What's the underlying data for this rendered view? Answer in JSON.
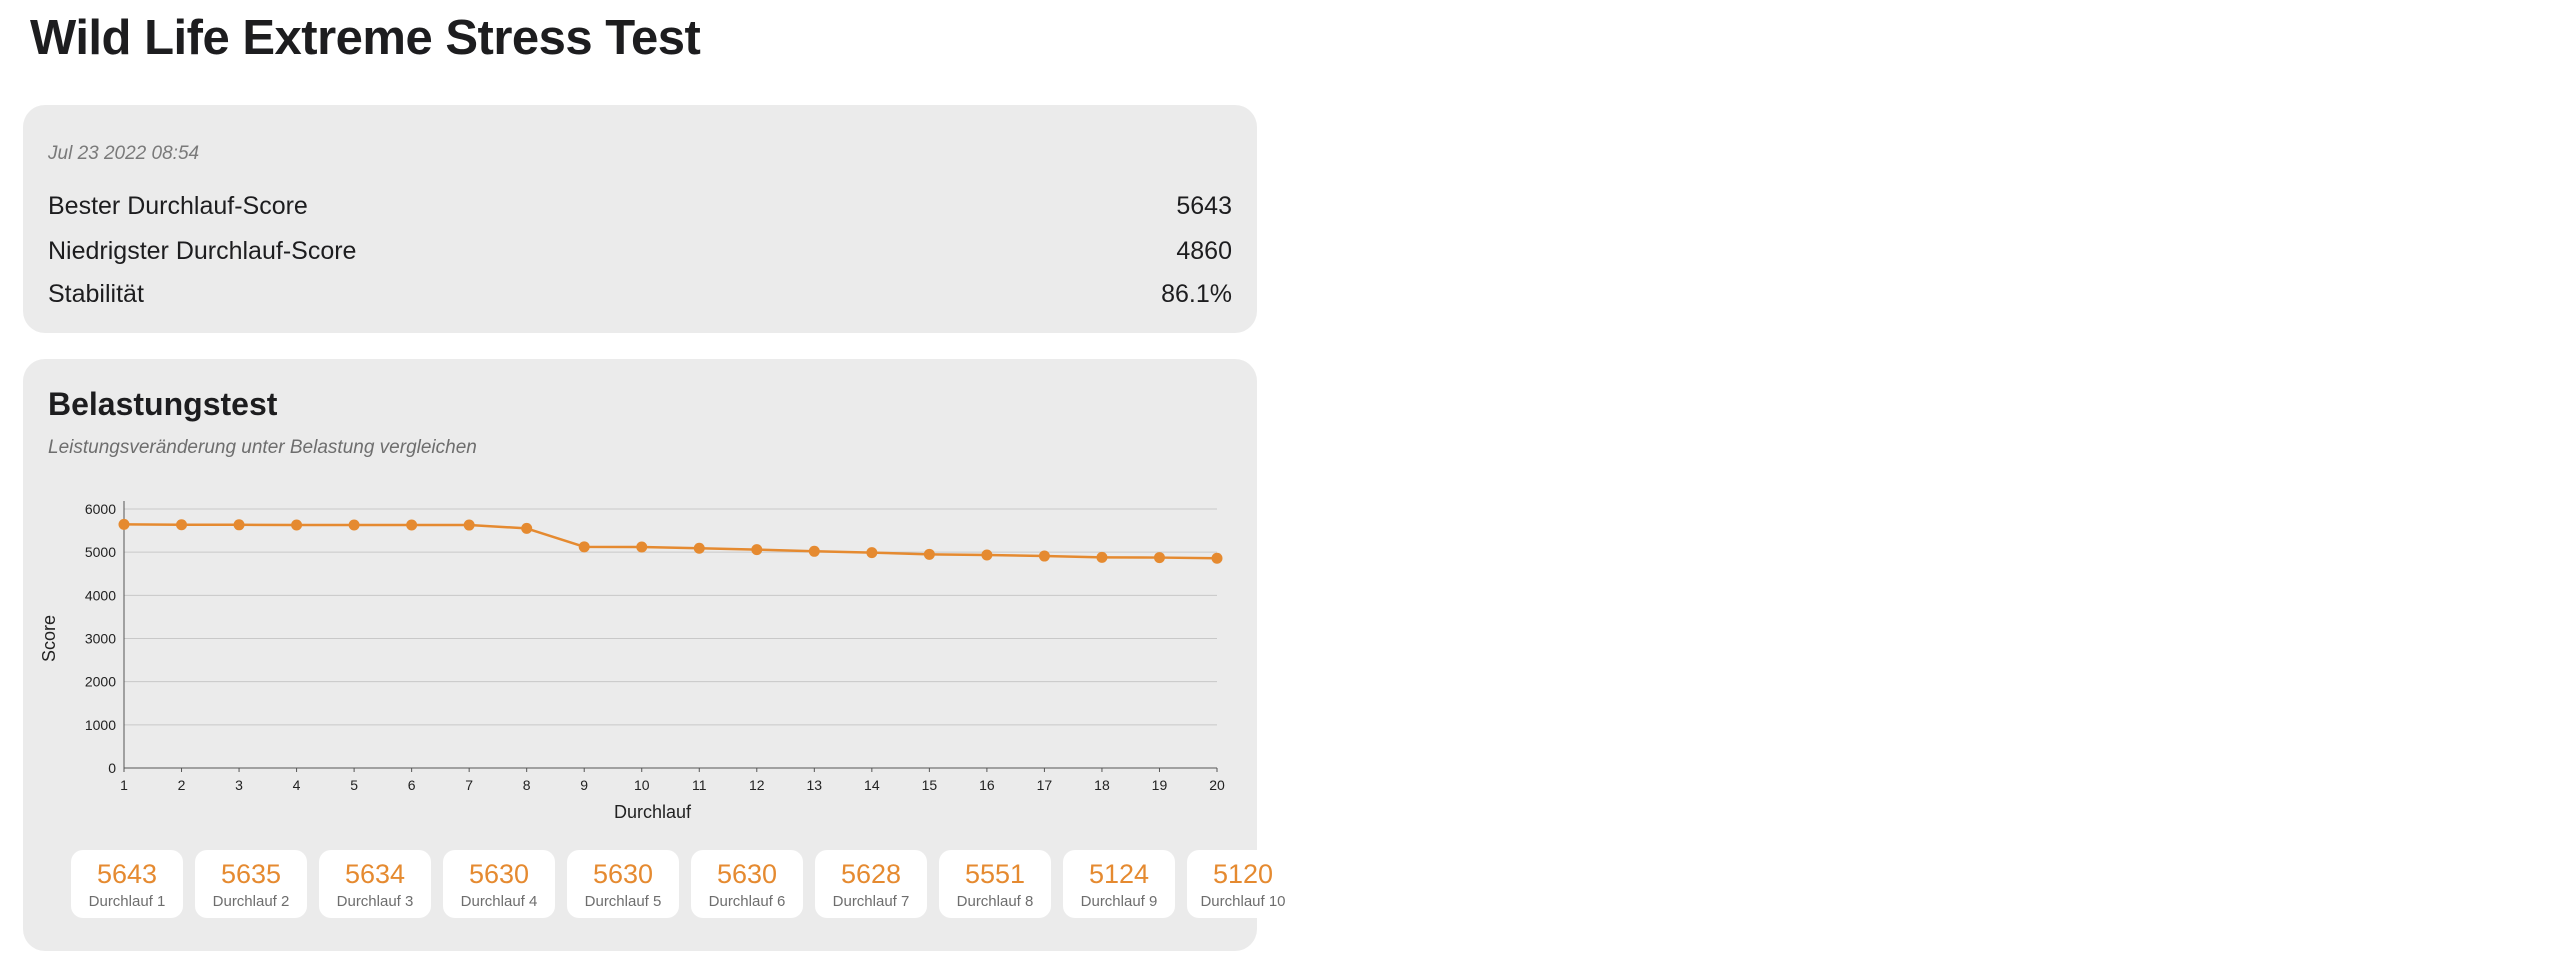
{
  "page": {
    "title": "Wild Life Extreme Stress Test"
  },
  "summary": {
    "date": "Jul 23 2022 08:54",
    "rows": [
      {
        "label": "Bester Durchlauf-Score",
        "value": "5643"
      },
      {
        "label": "Niedrigster Durchlauf-Score",
        "value": "4860"
      },
      {
        "label": "Stabilität",
        "value": "86.1%"
      }
    ]
  },
  "stress_test": {
    "title": "Belastungstest",
    "subtitle": "Leistungsveränderung unter Belastung vergleichen",
    "runs": [
      {
        "score": "5643",
        "label": "Durchlauf 1"
      },
      {
        "score": "5635",
        "label": "Durchlauf 2"
      },
      {
        "score": "5634",
        "label": "Durchlauf 3"
      },
      {
        "score": "5630",
        "label": "Durchlauf 4"
      },
      {
        "score": "5630",
        "label": "Durchlauf 5"
      },
      {
        "score": "5630",
        "label": "Durchlauf 6"
      },
      {
        "score": "5628",
        "label": "Durchlauf 7"
      },
      {
        "score": "5551",
        "label": "Durchlauf 8"
      },
      {
        "score": "5124",
        "label": "Durchlauf 9"
      },
      {
        "score": "5120",
        "label": "Durchlauf 10"
      }
    ]
  },
  "colors": {
    "accent": "#e58a30",
    "card_bg": "#ebebeb",
    "grid": "#c8c8c8",
    "axis": "#555555"
  },
  "chart_data": {
    "type": "line",
    "title": "",
    "xlabel": "Durchlauf",
    "ylabel": "Score",
    "x": [
      1,
      2,
      3,
      4,
      5,
      6,
      7,
      8,
      9,
      10,
      11,
      12,
      13,
      14,
      15,
      16,
      17,
      18,
      19,
      20
    ],
    "xlim": [
      1,
      20
    ],
    "ylim": [
      0,
      6000
    ],
    "yticks": [
      0,
      1000,
      2000,
      3000,
      4000,
      5000,
      6000
    ],
    "grid": true,
    "series": [
      {
        "values": [
          5643,
          5635,
          5634,
          5630,
          5630,
          5630,
          5628,
          5551,
          5124,
          5120,
          5090,
          5060,
          5020,
          4990,
          4950,
          4935,
          4910,
          4880,
          4875,
          4860
        ]
      }
    ]
  }
}
